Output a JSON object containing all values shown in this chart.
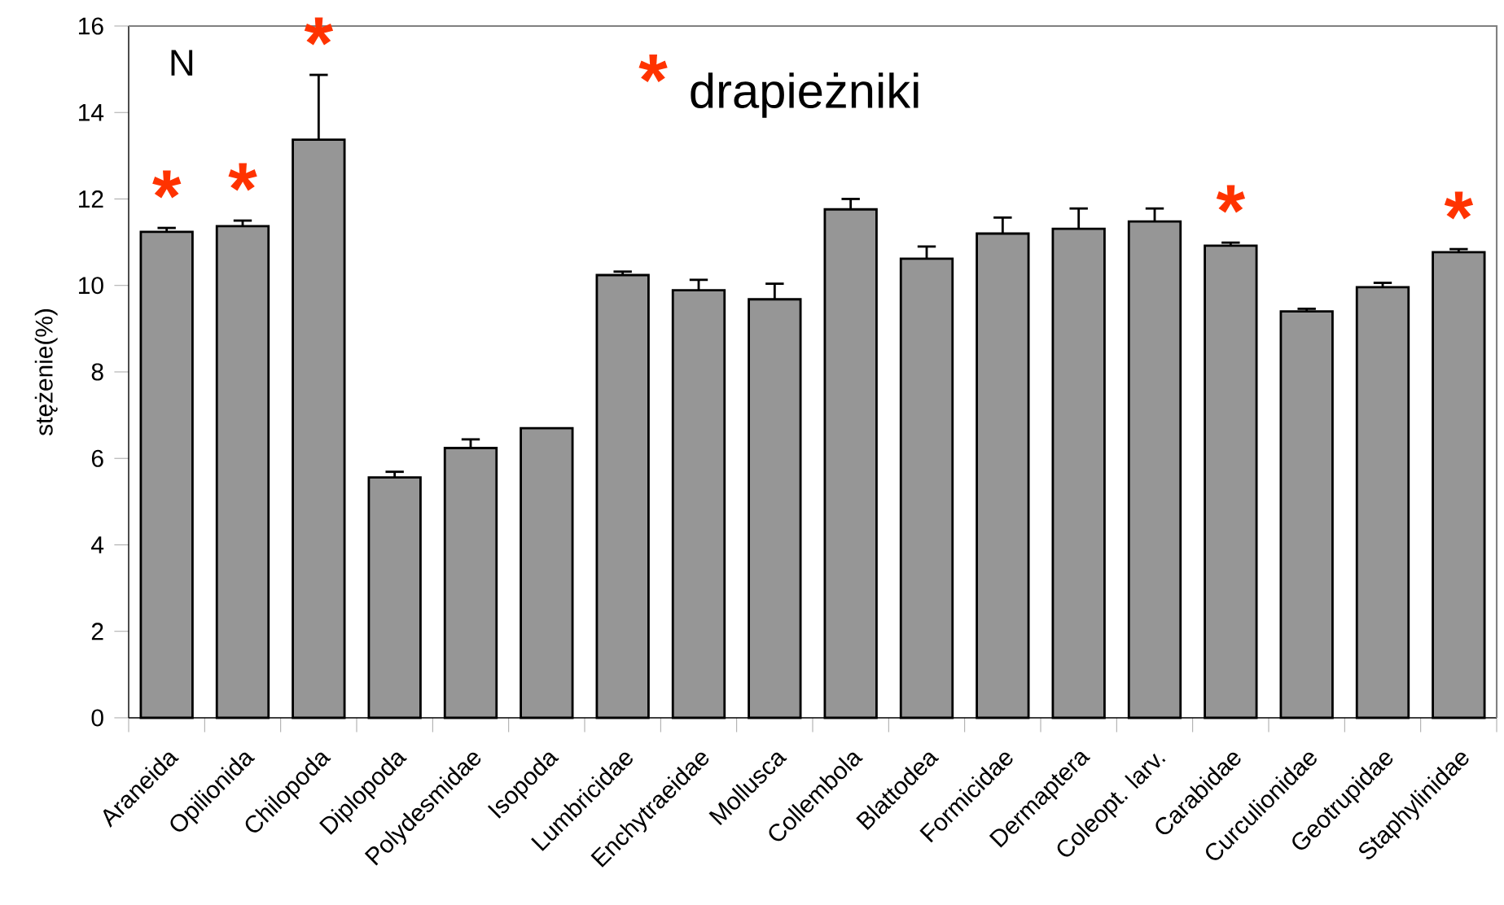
{
  "chart_data": {
    "type": "bar",
    "ylabel": "stężenie(%)",
    "categories": [
      "Araneida",
      "Opilionida",
      "Chilopoda",
      "Diplopoda",
      "Polydesmidae",
      "Isopoda",
      "Lumbricidae",
      "Enchytraeidae",
      "Mollusca",
      "Collembola",
      "Blattodea",
      "Formicidae",
      "Dermaptera",
      "Coleopt. larv.",
      "Carabidae",
      "Curculionidae",
      "Geotrupidae",
      "Staphylinidae"
    ],
    "values": [
      11.24,
      11.37,
      13.37,
      5.56,
      6.24,
      6.7,
      10.24,
      9.89,
      9.68,
      11.76,
      10.62,
      11.2,
      11.31,
      11.48,
      10.92,
      9.4,
      9.96,
      10.77
    ],
    "errors": [
      0.09,
      0.13,
      1.5,
      0.13,
      0.2,
      null,
      0.08,
      0.24,
      0.36,
      0.24,
      0.28,
      0.37,
      0.47,
      0.3,
      0.07,
      0.06,
      0.1,
      0.07
    ],
    "color": "#969696",
    "ylim": [
      0,
      16
    ],
    "yticks": [
      0,
      2,
      4,
      6,
      8,
      10,
      12,
      14,
      16
    ],
    "annotations": [
      "N",
      "*",
      "drapieżniki",
      {
        "text": "*",
        "x": "Araneida",
        "y": 11.24
      },
      {
        "text": "*",
        "x": "Opilionida",
        "y": 11.37
      },
      {
        "text": "*",
        "x": "Chilopoda",
        "y": 13.37
      },
      {
        "text": "*",
        "x": "Carabidae",
        "y": 10.92
      },
      {
        "text": "*",
        "x": "Staphylinidae",
        "y": 10.77
      }
    ]
  }
}
